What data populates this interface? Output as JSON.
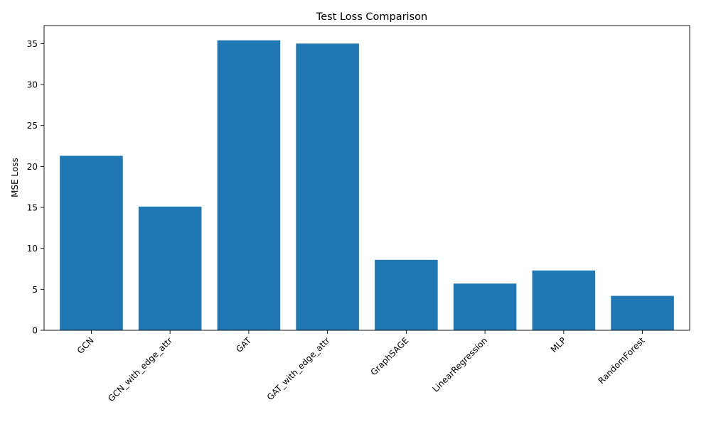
{
  "chart_data": {
    "type": "bar",
    "title": "Test Loss Comparison",
    "xlabel": "",
    "ylabel": "MSE Loss",
    "categories": [
      "GCN",
      "GCN_with_edge_attr",
      "GAT",
      "GAT_with_edge_attr",
      "GraphSAGE",
      "LinearRegression",
      "MLP",
      "RandomForest"
    ],
    "values": [
      21.3,
      15.1,
      35.4,
      35.0,
      8.6,
      5.7,
      7.3,
      4.2
    ],
    "ylim": [
      0,
      37.2
    ],
    "yticks": [
      0,
      5,
      10,
      15,
      20,
      25,
      30,
      35
    ],
    "grid": false,
    "legend": "none",
    "bar_color": "#1f77b4"
  }
}
